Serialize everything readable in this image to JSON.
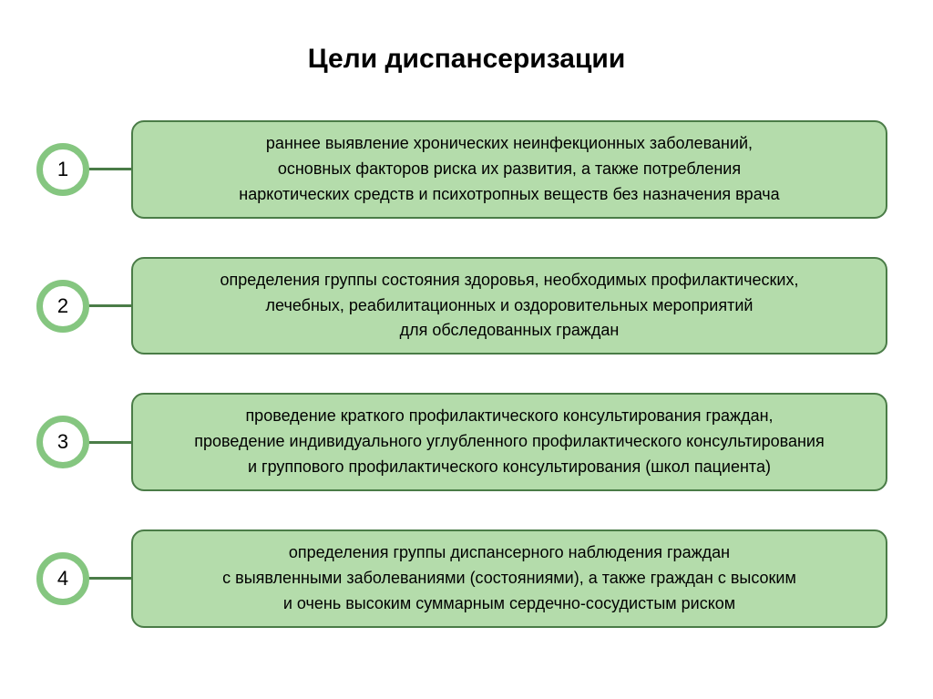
{
  "title": "Цели диспансеризации",
  "style": {
    "title_fontsize": 30,
    "title_color": "#000000",
    "circle_outer_diameter": 58,
    "circle_border_width": 7,
    "circle_border_color": "#85c680",
    "circle_bg": "#ffffff",
    "circle_num_fontsize": 22,
    "connector_width": 50,
    "connector_thickness": 3,
    "connector_color": "#4a7c47",
    "card_bg": "#b4dcab",
    "card_border_color": "#4a7c47",
    "card_border_width": 2,
    "card_border_radius": 14,
    "card_min_height": 100,
    "card_fontsize": 18,
    "text_color": "#000000",
    "row_gap": 42,
    "background_color": "#ffffff"
  },
  "items": [
    {
      "num": "1",
      "text": "раннее выявление хронических неинфекционных заболеваний,\nосновных факторов риска их развития, а также потребления\nнаркотических средств и психотропных веществ без назначения врача"
    },
    {
      "num": "2",
      "text": "определения группы состояния здоровья, необходимых профилактических,\nлечебных, реабилитационных и оздоровительных мероприятий\nдля обследованных граждан"
    },
    {
      "num": "3",
      "text": "проведение краткого профилактического консультирования граждан,\nпроведение индивидуального углубленного профилактического консультирования\nи группового профилактического консультирования (школ пациента)"
    },
    {
      "num": "4",
      "text": "определения группы диспансерного наблюдения граждан\nс выявленными заболеваниями (состояниями), а также граждан с высоким\nи очень высоким суммарным сердечно-сосудистым риском"
    }
  ]
}
